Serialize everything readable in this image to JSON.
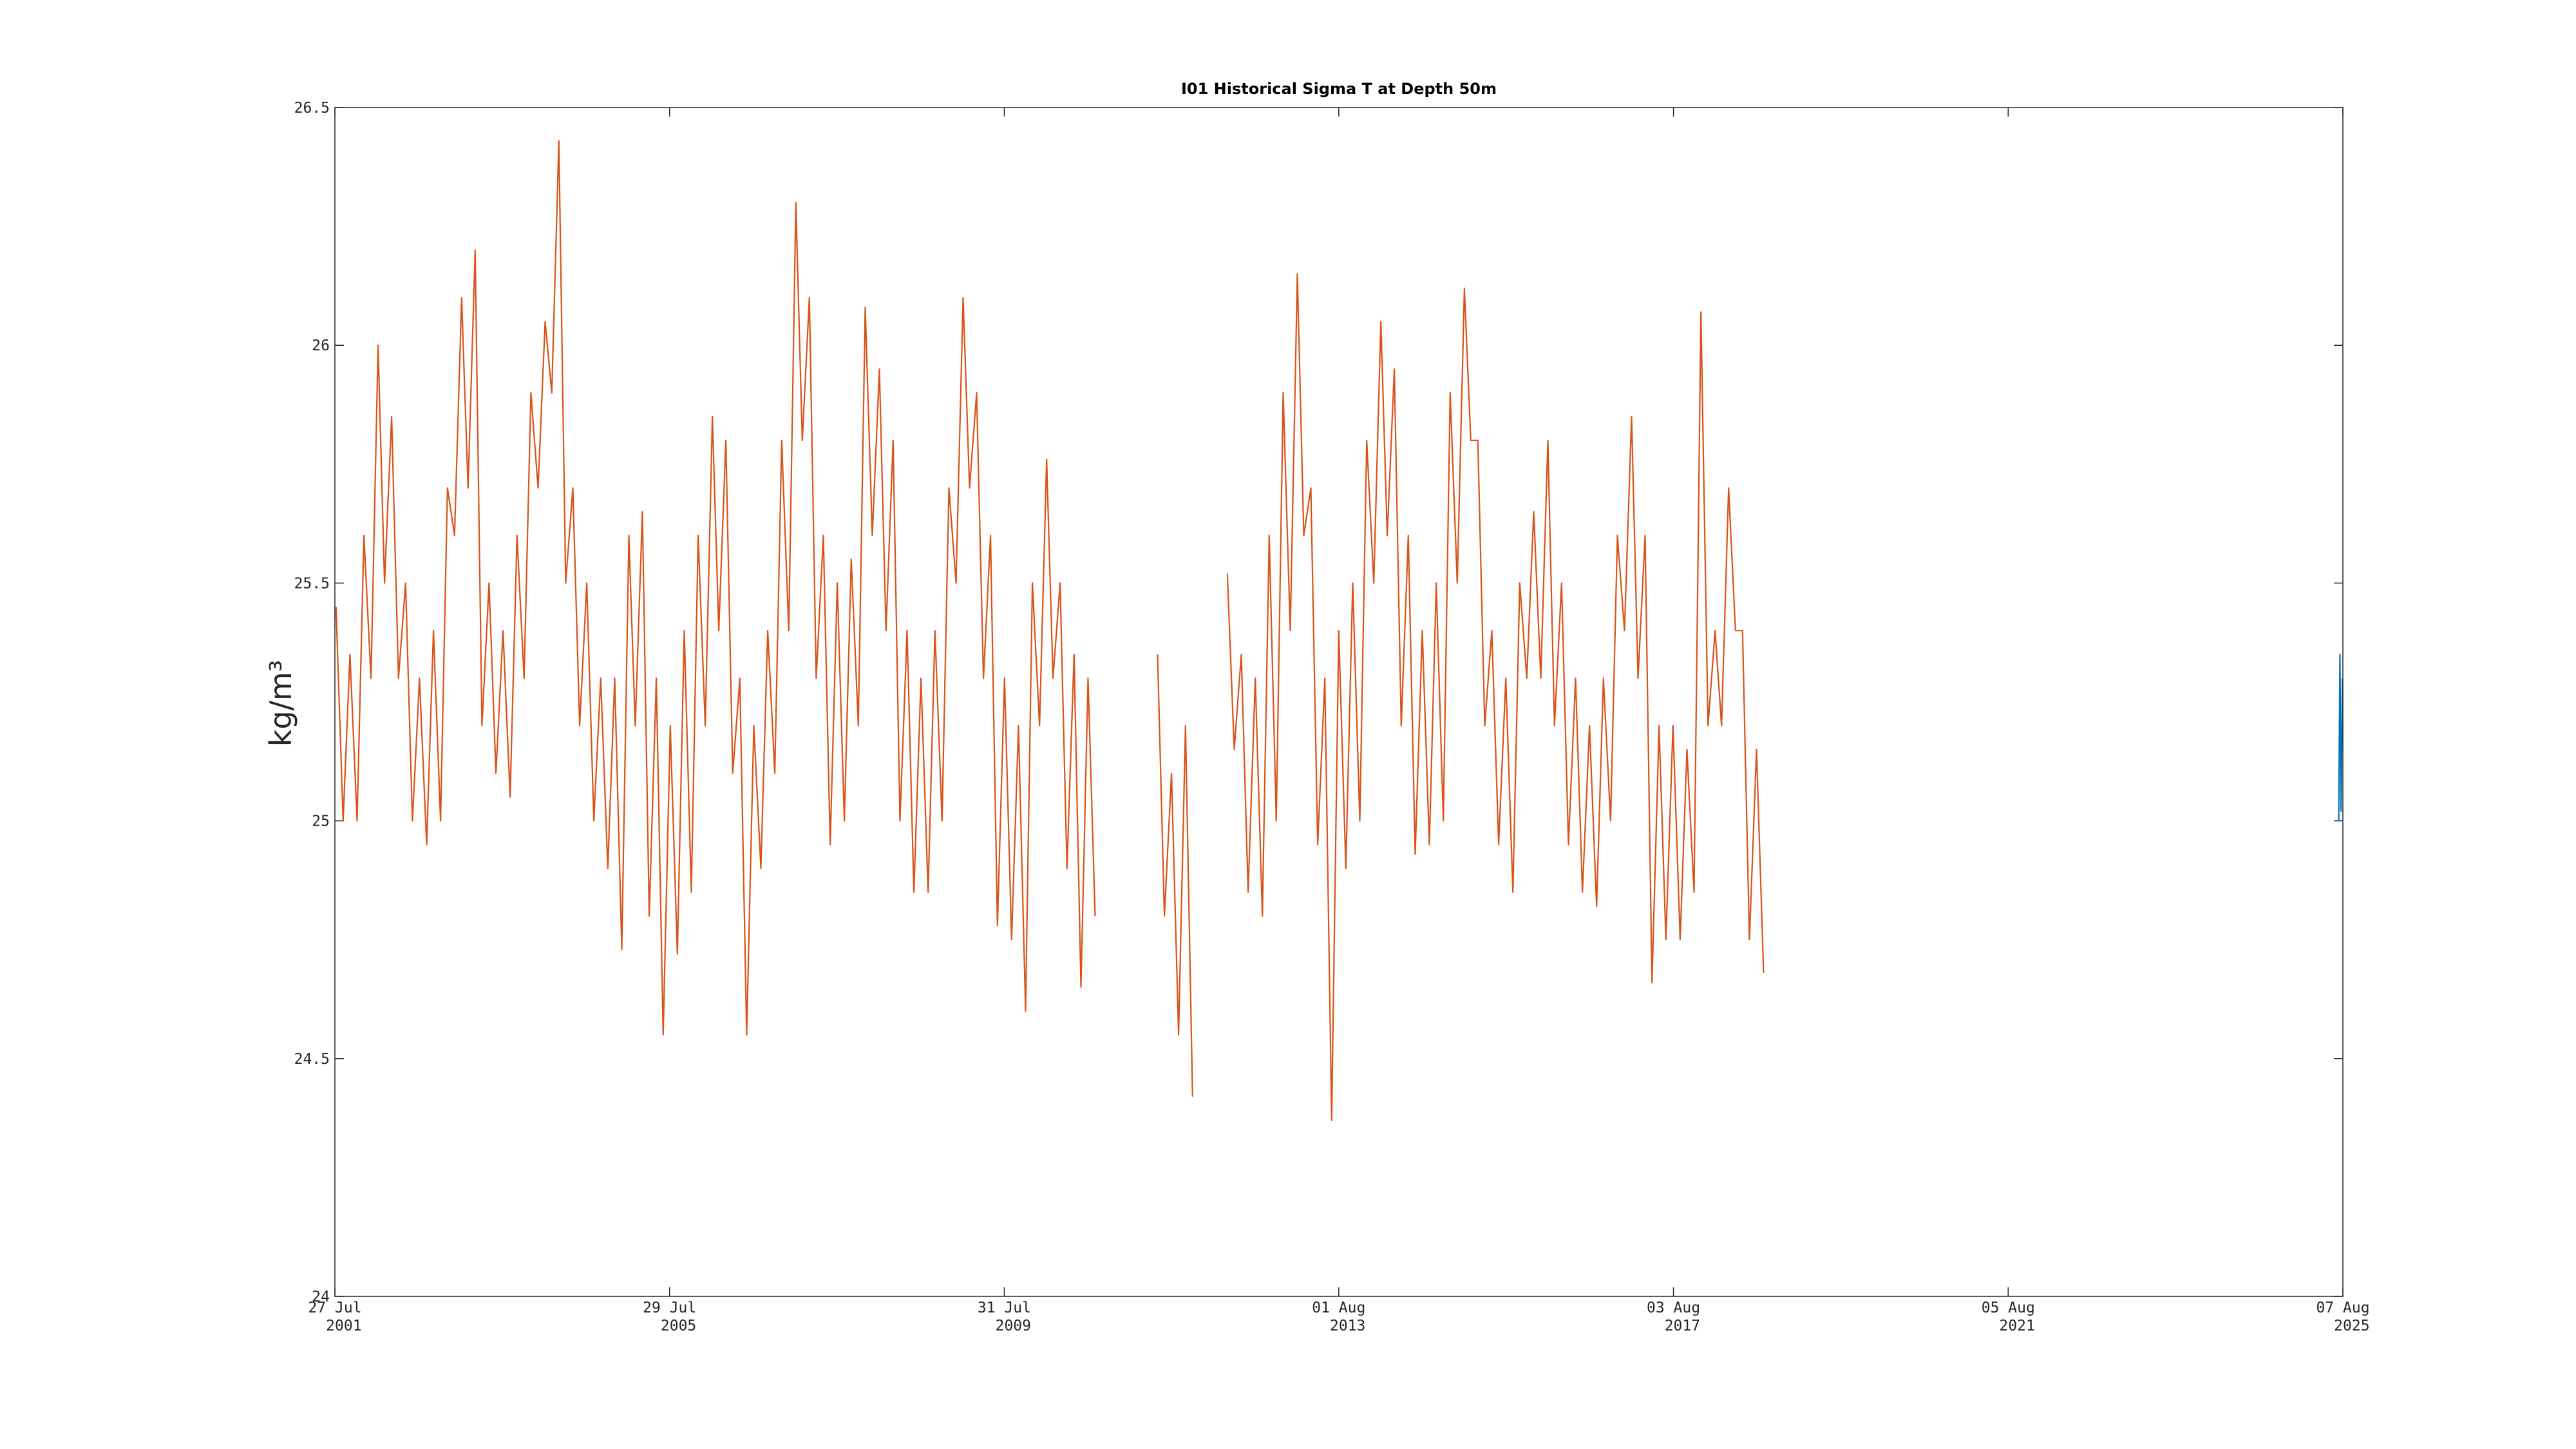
{
  "chart_data": {
    "type": "line",
    "title": "I01 Historical Sigma T at Depth 50m",
    "y_label": "kg/m³",
    "xlim": [
      "2001-07-27",
      "2025-08-07"
    ],
    "xticks": [
      {
        "value": "2001-07-27",
        "label": "27 Jul\n2001"
      },
      {
        "value": "2005-07-29",
        "label": "29 Jul\n2005"
      },
      {
        "value": "2009-07-31",
        "label": "31 Jul\n2009"
      },
      {
        "value": "2013-08-01",
        "label": "01 Aug\n2013"
      },
      {
        "value": "2017-08-03",
        "label": "03 Aug\n2017"
      },
      {
        "value": "2021-08-05",
        "label": "05 Aug\n2021"
      },
      {
        "value": "2025-08-07",
        "label": "07 Aug\n2025"
      }
    ],
    "ylim": [
      24,
      26.5
    ],
    "yticks": [
      24,
      24.5,
      25,
      25.5,
      26,
      26.5
    ],
    "grid": false,
    "series": [
      {
        "color": "#d95319",
        "x": [
          "2001-08-01",
          "2001-09-01",
          "2001-10-01",
          "2001-11-01",
          "2001-12-01",
          "2002-01-01",
          "2002-02-01",
          "2002-03-01",
          "2002-04-01",
          "2002-05-01",
          "2002-06-01",
          "2002-07-01",
          "2002-08-01",
          "2002-09-01",
          "2002-10-01",
          "2002-11-01",
          "2002-12-01",
          "2003-01-01",
          "2003-02-01",
          "2003-03-01",
          "2003-04-01",
          "2003-05-01",
          "2003-06-01",
          "2003-07-01",
          "2003-08-01",
          "2003-09-01",
          "2003-10-01",
          "2003-11-01",
          "2003-12-01",
          "2004-01-01",
          "2004-02-01",
          "2004-03-01",
          "2004-04-01",
          "2004-05-01",
          "2004-06-01",
          "2004-07-01",
          "2004-08-01",
          "2004-09-01",
          "2004-10-01",
          "2004-11-01",
          "2004-12-01",
          "2005-01-01",
          "2005-02-01",
          "2005-03-01",
          "2005-04-01",
          "2005-05-01",
          "2005-06-01",
          "2005-07-01",
          "2005-08-01",
          "2005-09-01",
          "2005-10-01",
          "2005-11-01",
          "2005-12-01",
          "2006-01-01",
          "2006-02-01",
          "2006-03-01",
          "2006-04-01",
          "2006-05-01",
          "2006-06-01",
          "2006-07-01",
          "2006-08-01",
          "2006-09-01",
          "2006-10-01",
          "2006-11-01",
          "2006-12-01",
          "2007-01-01",
          "2007-02-01",
          "2007-03-01",
          "2007-04-01",
          "2007-05-01",
          "2007-06-01",
          "2007-07-01",
          "2007-08-01",
          "2007-09-01",
          "2007-10-01",
          "2007-11-01",
          "2007-12-01",
          "2008-01-01",
          "2008-02-01",
          "2008-03-01",
          "2008-04-01",
          "2008-05-01",
          "2008-06-01",
          "2008-07-01",
          "2008-08-01",
          "2008-09-01",
          "2008-10-01",
          "2008-11-01",
          "2008-12-01",
          "2009-01-01",
          "2009-02-01",
          "2009-03-01",
          "2009-04-01",
          "2009-05-01",
          "2009-06-01",
          "2009-07-01",
          "2009-08-01",
          "2009-09-01",
          "2009-10-01",
          "2009-11-01",
          "2009-12-01",
          "2010-01-01",
          "2010-02-01",
          "2010-03-01",
          "2010-04-01",
          "2010-05-01",
          "2010-06-01",
          "2010-07-01",
          "2010-08-01",
          "2010-09-01",
          "2011-01-01",
          "2011-06-01",
          "2011-07-01",
          "2011-08-01",
          "2011-09-01",
          "2011-10-01",
          "2011-11-01",
          "2012-01-01",
          "2012-04-01",
          "2012-05-01",
          "2012-06-01",
          "2012-07-01",
          "2012-08-01",
          "2012-09-01",
          "2012-10-01",
          "2012-11-01",
          "2012-12-01",
          "2013-01-01",
          "2013-02-01",
          "2013-03-01",
          "2013-04-01",
          "2013-05-01",
          "2013-06-01",
          "2013-07-01",
          "2013-08-01",
          "2013-09-01",
          "2013-10-01",
          "2013-11-01",
          "2013-12-01",
          "2014-01-01",
          "2014-02-01",
          "2014-03-01",
          "2014-04-01",
          "2014-05-01",
          "2014-06-01",
          "2014-07-01",
          "2014-08-01",
          "2014-09-01",
          "2014-10-01",
          "2014-11-01",
          "2014-12-01",
          "2015-01-01",
          "2015-02-01",
          "2015-03-01",
          "2015-04-01",
          "2015-05-01",
          "2015-06-01",
          "2015-07-01",
          "2015-08-01",
          "2015-09-01",
          "2015-10-01",
          "2015-11-01",
          "2015-12-01",
          "2016-01-01",
          "2016-02-01",
          "2016-03-01",
          "2016-04-01",
          "2016-05-01",
          "2016-06-01",
          "2016-07-01",
          "2016-08-01",
          "2016-09-01",
          "2016-10-01",
          "2016-11-01",
          "2016-12-01",
          "2017-01-01",
          "2017-02-01",
          "2017-03-01",
          "2017-04-01",
          "2017-05-01",
          "2017-06-01",
          "2017-07-01",
          "2017-08-01",
          "2017-09-01",
          "2017-10-01",
          "2017-11-01",
          "2017-12-01",
          "2018-01-01",
          "2018-02-01",
          "2018-03-01",
          "2018-04-01",
          "2018-05-01",
          "2018-06-01",
          "2018-07-01",
          "2018-08-01",
          "2018-09-01"
        ],
        "values": [
          25.45,
          25.0,
          25.35,
          25.0,
          25.6,
          25.3,
          26.0,
          25.5,
          25.85,
          25.3,
          25.5,
          25.0,
          25.3,
          24.95,
          25.4,
          25.0,
          25.7,
          25.6,
          26.1,
          25.7,
          26.2,
          25.2,
          25.5,
          25.1,
          25.4,
          25.05,
          25.6,
          25.3,
          25.9,
          25.7,
          26.05,
          25.9,
          26.43,
          25.5,
          25.7,
          25.2,
          25.5,
          25.0,
          25.3,
          24.9,
          25.3,
          24.73,
          25.6,
          25.2,
          25.65,
          24.8,
          25.3,
          24.55,
          25.2,
          24.72,
          25.4,
          24.85,
          25.6,
          25.2,
          25.85,
          25.4,
          25.8,
          25.1,
          25.3,
          24.55,
          25.2,
          24.9,
          25.4,
          25.1,
          25.8,
          25.4,
          26.3,
          25.8,
          26.1,
          25.3,
          25.6,
          24.95,
          25.5,
          25.0,
          25.55,
          25.2,
          26.08,
          25.6,
          25.95,
          25.4,
          25.8,
          25.0,
          25.4,
          24.85,
          25.3,
          24.85,
          25.4,
          25.0,
          25.7,
          25.5,
          26.1,
          25.7,
          25.9,
          25.3,
          25.6,
          24.78,
          25.3,
          24.75,
          25.2,
          24.6,
          25.5,
          25.2,
          25.76,
          25.3,
          25.5,
          24.9,
          25.35,
          24.65,
          25.3,
          24.8,
          null,
          25.35,
          24.8,
          25.1,
          24.55,
          25.2,
          24.42,
          null,
          25.52,
          25.15,
          25.35,
          24.85,
          25.3,
          24.8,
          25.6,
          25.0,
          25.9,
          25.4,
          26.15,
          25.6,
          25.7,
          24.95,
          25.3,
          24.37,
          25.4,
          24.9,
          25.5,
          25.0,
          25.8,
          25.5,
          26.05,
          25.6,
          25.95,
          25.2,
          25.6,
          24.93,
          25.4,
          24.95,
          25.5,
          25.0,
          25.9,
          25.5,
          26.12,
          25.8,
          25.8,
          25.2,
          25.4,
          24.95,
          25.3,
          24.85,
          25.5,
          25.3,
          25.65,
          25.3,
          25.8,
          25.2,
          25.5,
          24.95,
          25.3,
          24.85,
          25.2,
          24.82,
          25.3,
          25.0,
          25.6,
          25.4,
          25.85,
          25.3,
          25.6,
          24.66,
          25.2,
          24.75,
          25.2,
          24.75,
          25.15,
          24.85,
          26.07,
          25.2,
          25.4,
          25.2,
          25.7,
          25.4,
          25.4,
          24.75,
          25.15,
          24.68
        ]
      },
      {
        "color": "#0072bd",
        "x": [
          "2025-07-20",
          "2025-07-25",
          "2025-07-30",
          "2025-08-05"
        ],
        "values": [
          25.0,
          25.35,
          25.02,
          25.3
        ]
      }
    ]
  }
}
